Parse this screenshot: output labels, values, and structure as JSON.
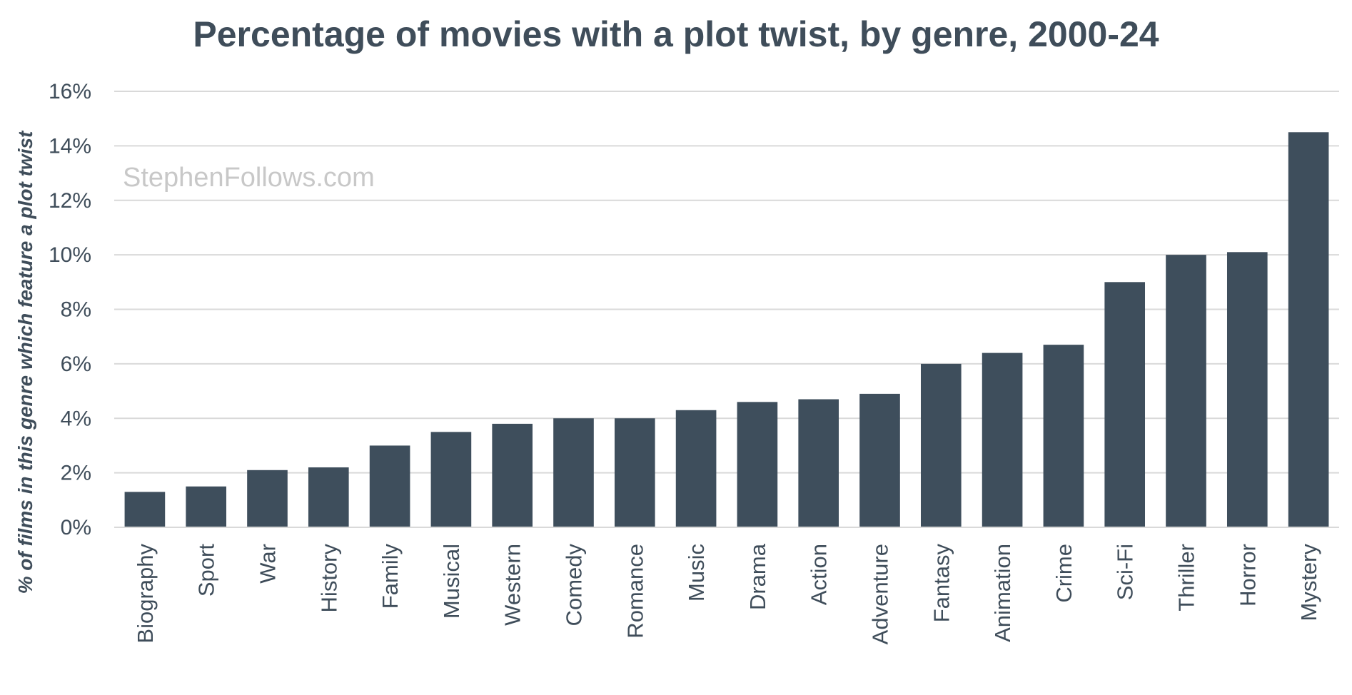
{
  "chart_data": {
    "type": "bar",
    "title": "Percentage of movies with a plot twist, by genre, 2000-24",
    "ylabel": "% of films in this genre which feature a plot twist",
    "xlabel": "",
    "watermark": "StephenFollows.com",
    "ylim": [
      0,
      16
    ],
    "yticks": [
      0,
      2,
      4,
      6,
      8,
      10,
      12,
      14,
      16
    ],
    "ytick_labels": [
      "0%",
      "2%",
      "4%",
      "6%",
      "8%",
      "10%",
      "12%",
      "14%",
      "16%"
    ],
    "grid": true,
    "legend": "none",
    "categories": [
      "Biography",
      "Sport",
      "War",
      "History",
      "Family",
      "Musical",
      "Western",
      "Comedy",
      "Romance",
      "Music",
      "Drama",
      "Action",
      "Adventure",
      "Fantasy",
      "Animation",
      "Crime",
      "Sci-Fi",
      "Thriller",
      "Horror",
      "Mystery"
    ],
    "values": [
      1.3,
      1.5,
      2.1,
      2.2,
      3.0,
      3.5,
      3.8,
      4.0,
      4.0,
      4.3,
      4.6,
      4.7,
      4.9,
      6.0,
      6.4,
      6.7,
      9.0,
      10.0,
      10.1,
      14.5
    ],
    "colors": {
      "bar": "#3e4e5c",
      "grid": "#d9d9d9",
      "text": "#3f4d5a",
      "watermark": "#c8c8c8"
    }
  }
}
